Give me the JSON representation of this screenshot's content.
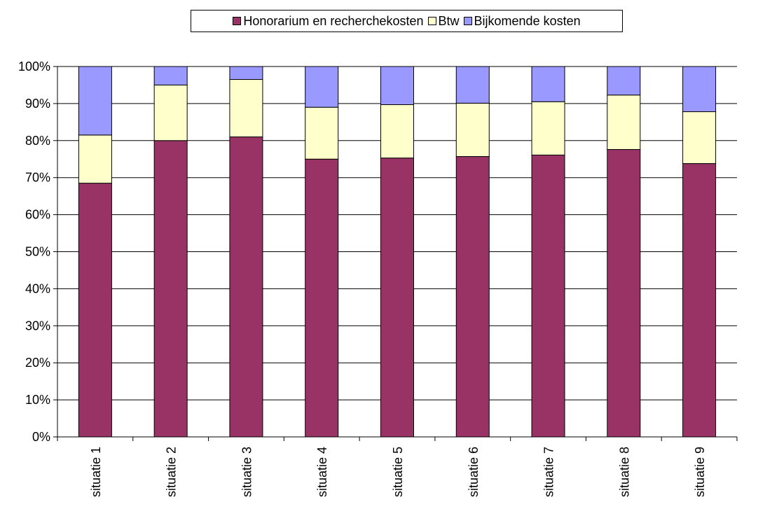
{
  "chart_data": {
    "type": "bar",
    "stacked": true,
    "categories": [
      "situatie 1",
      "situatie 2",
      "situatie 3",
      "situatie 4",
      "situatie 5",
      "situatie 6",
      "situatie 7",
      "situatie 8",
      "situatie 9"
    ],
    "series": [
      {
        "name": "Honorarium en recherchekosten",
        "color": "#993366",
        "values": [
          68.5,
          80.0,
          81.0,
          75.0,
          75.3,
          75.7,
          76.1,
          77.6,
          73.8
        ]
      },
      {
        "name": "Btw",
        "color": "#FFFFCC",
        "values": [
          13.0,
          15.0,
          15.5,
          14.0,
          14.4,
          14.4,
          14.4,
          14.7,
          14.0
        ]
      },
      {
        "name": "Bijkomende kosten",
        "color": "#9999FF",
        "values": [
          18.5,
          5.0,
          3.5,
          11.0,
          10.3,
          9.9,
          9.5,
          7.7,
          12.2
        ]
      }
    ],
    "y_ticks": [
      "0%",
      "10%",
      "20%",
      "30%",
      "40%",
      "50%",
      "60%",
      "70%",
      "80%",
      "90%",
      "100%"
    ],
    "ylim": [
      0,
      100
    ],
    "grid": true,
    "legend_position": "top"
  }
}
